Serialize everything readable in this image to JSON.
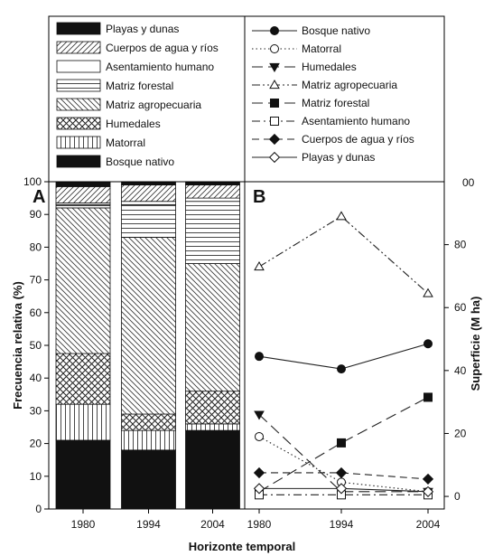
{
  "chart_data": [
    {
      "panel": "A",
      "type": "bar",
      "stacked": true,
      "categories": [
        "1980",
        "1994",
        "2004"
      ],
      "xlabel": "Horizonte temporal",
      "ylabel": "Frecuencia relativa (%)",
      "ylim": [
        0,
        100
      ],
      "yticks": [
        "0",
        "10",
        "20",
        "30",
        "40",
        "50",
        "60",
        "70",
        "80",
        "90",
        "100"
      ],
      "legend_position": "top",
      "series": [
        {
          "name": "Bosque nativo",
          "pattern": "solid",
          "values": [
            21,
            18,
            24
          ]
        },
        {
          "name": "Matorral",
          "pattern": "vertical",
          "values": [
            11,
            6,
            2
          ]
        },
        {
          "name": "Humedales",
          "pattern": "crosshatch",
          "values": [
            15.5,
            5,
            10
          ]
        },
        {
          "name": "Matriz agropecuaria",
          "pattern": "backdiag",
          "values": [
            44.5,
            54,
            39
          ]
        },
        {
          "name": "Matriz forestal",
          "pattern": "horizontal",
          "values": [
            1,
            10,
            19
          ]
        },
        {
          "name": "Asentamiento humano",
          "pattern": "blank",
          "values": [
            0.5,
            1,
            1
          ]
        },
        {
          "name": "Cuerpos de agua y ríos",
          "pattern": "diag",
          "values": [
            5,
            5,
            4
          ]
        },
        {
          "name": "Playas y dunas",
          "pattern": "solid",
          "values": [
            1.5,
            1,
            1
          ]
        }
      ]
    },
    {
      "panel": "B",
      "type": "line",
      "x": [
        "1980",
        "1994",
        "2004"
      ],
      "xlabel": "Horizonte temporal",
      "ylabel": "Superficie (M ha)",
      "ylim": [
        -4,
        100
      ],
      "yticks": [
        "0",
        "20",
        "40",
        "60",
        "80"
      ],
      "top_tick_partial": "00",
      "legend_position": "top",
      "series": [
        {
          "name": "Bosque nativo",
          "marker": "filled-circle",
          "line": "solid",
          "values": [
            44.5,
            40.5,
            48.5
          ]
        },
        {
          "name": "Matorral",
          "marker": "open-circle",
          "line": "dotted",
          "values": [
            19,
            4.5,
            1.5
          ]
        },
        {
          "name": "Humedales",
          "marker": "filled-triangle-down",
          "line": "long-dash",
          "values": [
            26,
            1.5,
            1.5
          ]
        },
        {
          "name": "Matriz agropecuaria",
          "marker": "open-triangle-up",
          "line": "dash-dot-dot",
          "values": [
            73,
            89,
            64.5
          ]
        },
        {
          "name": "Matriz forestal",
          "marker": "filled-square",
          "line": "long-dash",
          "values": [
            1.5,
            17,
            31.5
          ]
        },
        {
          "name": "Asentamiento humano",
          "marker": "open-square",
          "line": "dash-dot",
          "values": [
            0.5,
            0.5,
            0.5
          ]
        },
        {
          "name": "Cuerpos de agua y ríos",
          "marker": "filled-diamond",
          "line": "dash",
          "values": [
            7.5,
            7.5,
            5.5
          ]
        },
        {
          "name": "Playas y dunas",
          "marker": "open-diamond",
          "line": "solid",
          "values": [
            2.5,
            2.5,
            1.5
          ]
        }
      ]
    }
  ]
}
